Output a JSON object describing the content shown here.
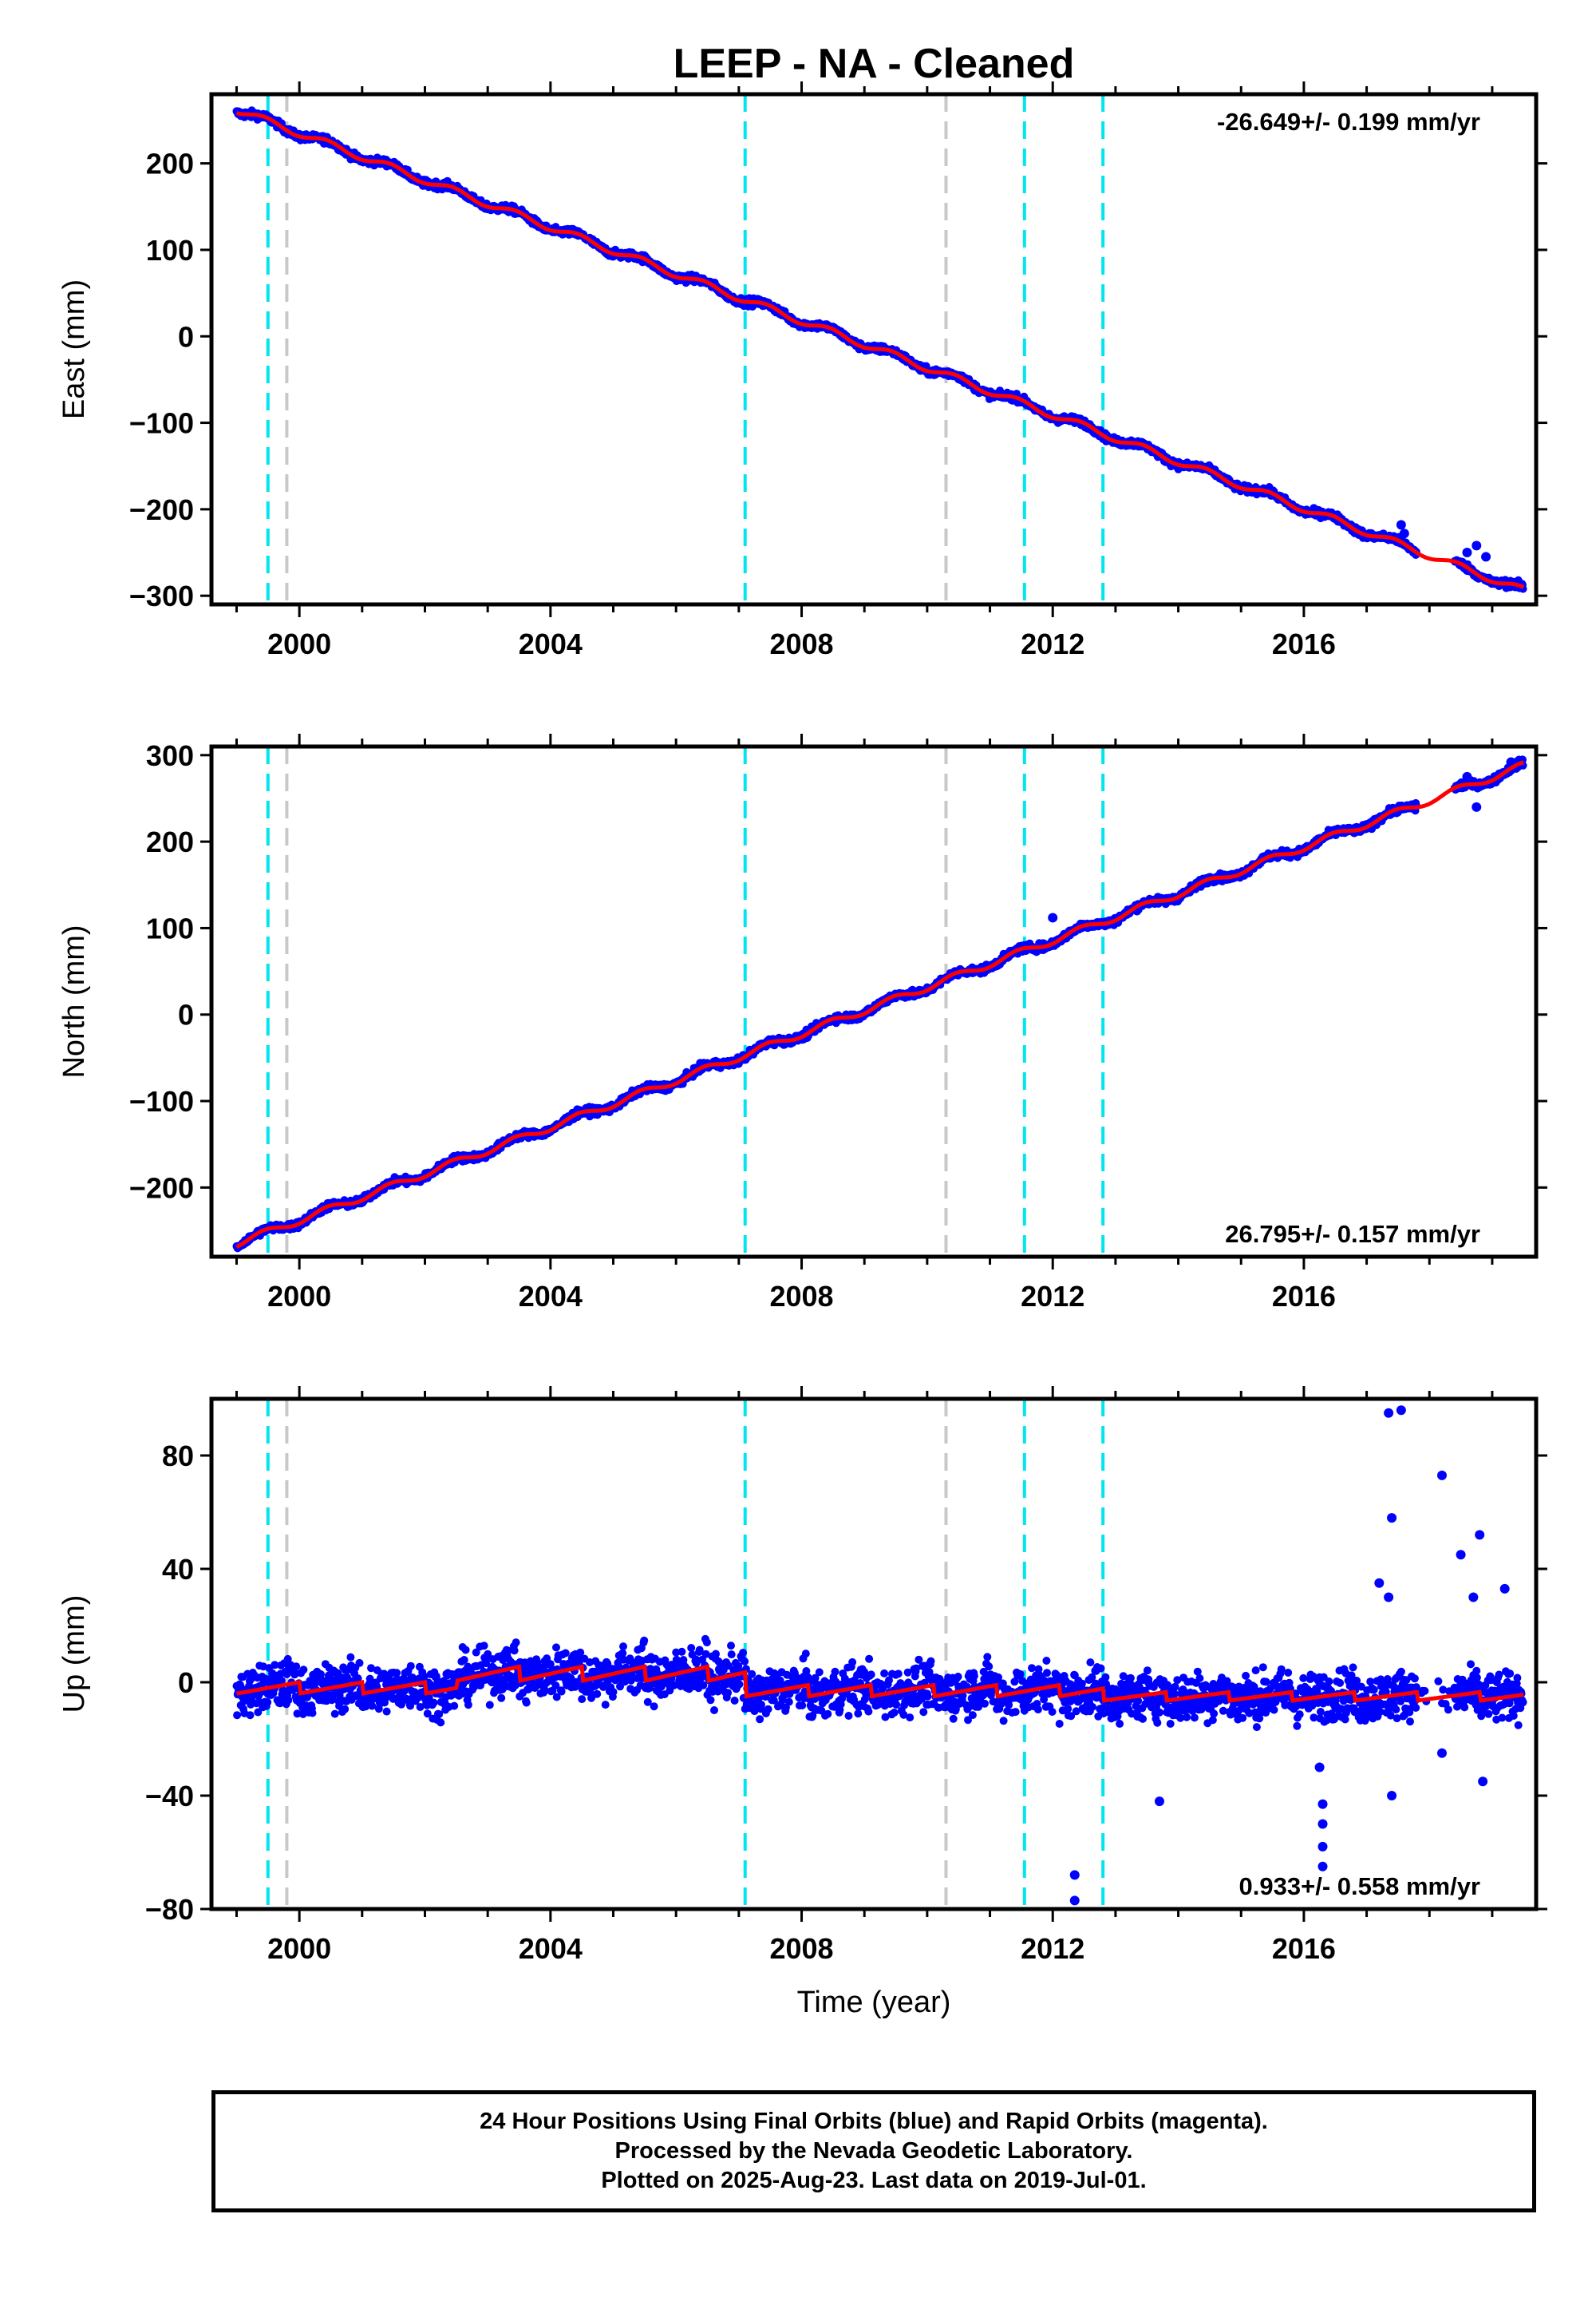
{
  "title": "LEEP  - NA - Cleaned",
  "xlabel": "Time (year)",
  "footer": {
    "line1": "24 Hour Positions Using Final Orbits (blue) and Rapid Orbits (magenta).",
    "line2": "Processed by the Nevada Geodetic Laboratory.",
    "line3": "Plotted on 2025-Aug-23. Last data on 2019-Jul-01."
  },
  "colors": {
    "data": "#0000ff",
    "model": "#ff0000",
    "cyan_line": "#00e5ee",
    "gray_line": "#c8c8c8",
    "axis": "#000000"
  },
  "chart_data": [
    {
      "type": "scatter",
      "panel": "east",
      "ylabel": "East (mm)",
      "rate_label": "-26.649+/- 0.199 mm/yr",
      "rate_position": "top-right",
      "xlim": [
        1998.6,
        2019.7
      ],
      "ylim": [
        -310,
        280
      ],
      "yticks": [
        -300,
        -200,
        -100,
        0,
        100,
        200
      ],
      "xticks": [
        2000,
        2004,
        2008,
        2012,
        2016
      ],
      "x_range": [
        1999.0,
        2019.5
      ],
      "y_start": 262,
      "y_end": -294,
      "seasonal_amplitude": 4,
      "scatter": 3,
      "points": [
        [
          1999.0,
          262
        ],
        [
          2001.0,
          210
        ],
        [
          2003.0,
          160
        ],
        [
          2005.0,
          105
        ],
        [
          2007.0,
          50
        ],
        [
          2009.0,
          0
        ],
        [
          2011.0,
          -60
        ],
        [
          2013.0,
          -115
        ],
        [
          2015.0,
          -165
        ],
        [
          2017.0,
          -225
        ],
        [
          2018.5,
          -262
        ],
        [
          2019.5,
          -294
        ]
      ],
      "outliers": [
        [
          2017.55,
          -218
        ],
        [
          2017.6,
          -228
        ],
        [
          2018.6,
          -250
        ],
        [
          2018.75,
          -242
        ],
        [
          2018.9,
          -255
        ]
      ]
    },
    {
      "type": "scatter",
      "panel": "north",
      "ylabel": "North (mm)",
      "rate_label": "26.795+/- 0.157 mm/yr",
      "rate_position": "bottom-right",
      "xlim": [
        1998.6,
        2019.7
      ],
      "ylim": [
        -280,
        310
      ],
      "yticks": [
        -200,
        -100,
        0,
        100,
        200,
        300
      ],
      "xticks": [
        2000,
        2004,
        2008,
        2012,
        2016
      ],
      "x_range": [
        1999.0,
        2019.5
      ],
      "y_start": -265,
      "y_end": 288,
      "seasonal_amplitude": 4,
      "scatter": 3,
      "points": [
        [
          1999.0,
          -265
        ],
        [
          2001.0,
          -215
        ],
        [
          2003.0,
          -160
        ],
        [
          2005.0,
          -105
        ],
        [
          2007.0,
          -50
        ],
        [
          2009.0,
          0
        ],
        [
          2011.0,
          50
        ],
        [
          2013.0,
          105
        ],
        [
          2015.0,
          155
        ],
        [
          2017.0,
          210
        ],
        [
          2018.5,
          250
        ],
        [
          2019.5,
          288
        ]
      ],
      "outliers": [
        [
          2012.0,
          112
        ],
        [
          2018.6,
          275
        ],
        [
          2018.75,
          240
        ],
        [
          2019.3,
          292
        ]
      ]
    },
    {
      "type": "scatter",
      "panel": "up",
      "ylabel": "Up (mm)",
      "rate_label": "0.933+/- 0.558 mm/yr",
      "rate_position": "bottom-right",
      "xlim": [
        1998.6,
        2019.7
      ],
      "ylim": [
        -80,
        100
      ],
      "yticks": [
        -80,
        -40,
        0,
        40,
        80
      ],
      "xticks": [
        2000,
        2004,
        2008,
        2012,
        2016
      ],
      "x_range": [
        1999.0,
        2019.5
      ],
      "y_start": -2,
      "y_end": -1,
      "seasonal_amplitude": 5,
      "scatter": 6,
      "offsets": [
        [
          2002.5,
          5
        ],
        [
          2007.1,
          -8
        ],
        [
          2012.8,
          -10
        ]
      ],
      "outliers": [
        [
          2017.35,
          95
        ],
        [
          2017.55,
          96
        ],
        [
          2017.4,
          58
        ],
        [
          2017.35,
          30
        ],
        [
          2018.2,
          73
        ],
        [
          2018.5,
          45
        ],
        [
          2018.8,
          52
        ],
        [
          2018.7,
          30
        ],
        [
          2016.25,
          -30
        ],
        [
          2016.3,
          -43
        ],
        [
          2016.3,
          -50
        ],
        [
          2016.3,
          -58
        ],
        [
          2016.3,
          -65
        ],
        [
          2013.7,
          -42
        ],
        [
          2017.4,
          -40
        ],
        [
          2012.35,
          -68
        ],
        [
          2012.35,
          -77
        ],
        [
          2018.2,
          -25
        ],
        [
          2018.85,
          -35
        ],
        [
          2017.2,
          35
        ],
        [
          2019.2,
          33
        ]
      ]
    }
  ],
  "events": {
    "cyan_dashed": [
      1999.5,
      2007.1,
      2011.55,
      2012.8
    ],
    "gray_dashed": [
      1999.8,
      2010.3
    ]
  }
}
